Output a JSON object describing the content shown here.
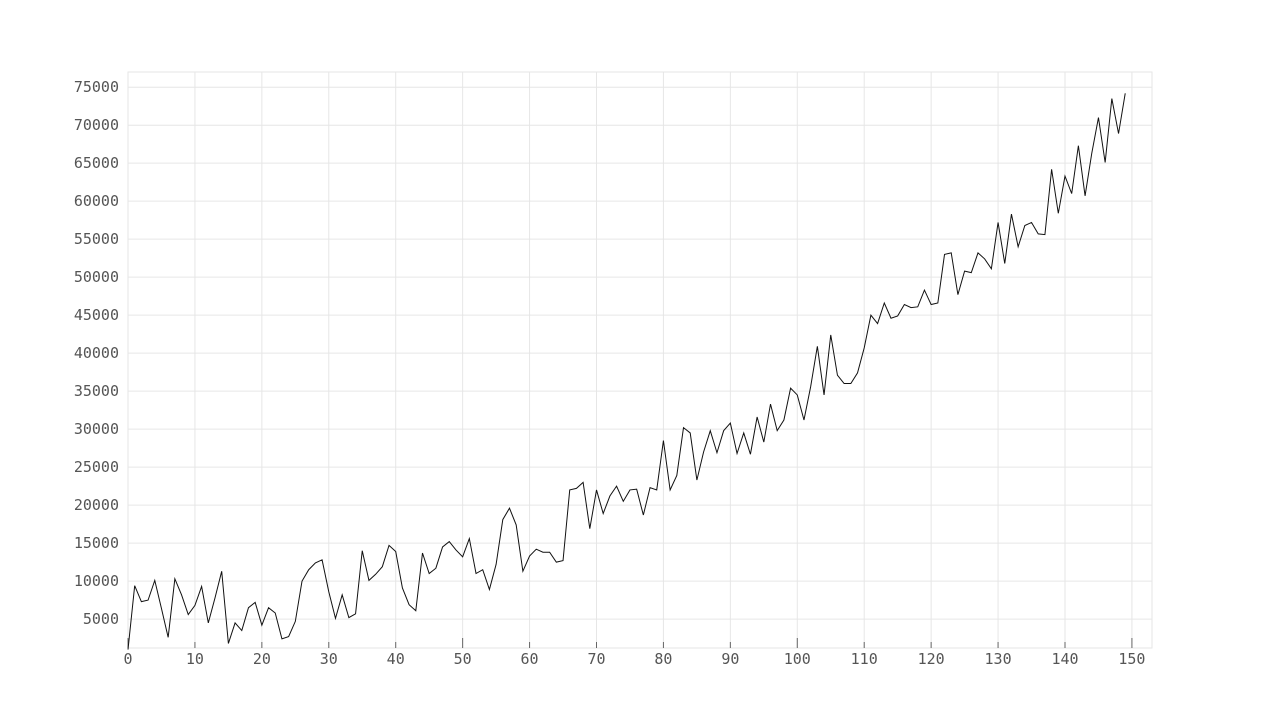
{
  "chart_data": {
    "type": "line",
    "title": "",
    "xlabel": "",
    "ylabel": "",
    "xlim": [
      0,
      153
    ],
    "ylim": [
      1200,
      77000
    ],
    "grid": true,
    "x_ticks": [
      0,
      10,
      20,
      30,
      40,
      50,
      60,
      70,
      80,
      90,
      100,
      110,
      120,
      130,
      140,
      150
    ],
    "y_ticks": [
      5000,
      10000,
      15000,
      20000,
      25000,
      30000,
      35000,
      40000,
      45000,
      50000,
      55000,
      60000,
      65000,
      70000,
      75000
    ],
    "series": [
      {
        "name": "",
        "color": "#111111",
        "x_start": 0,
        "x_step": 1,
        "values": [
          1000,
          9400,
          7300,
          7500,
          10100,
          6400,
          2600,
          10300,
          8200,
          5600,
          6800,
          9300,
          4500,
          7800,
          11300,
          1800,
          4500,
          3500,
          6500,
          7200,
          4200,
          6500,
          5800,
          2400,
          2700,
          4700,
          10000,
          11500,
          12400,
          12800,
          8600,
          5100,
          8200,
          5200,
          5700,
          14000,
          10100,
          10900,
          11900,
          14700,
          13900,
          9100,
          6900,
          6100,
          13700,
          11000,
          11700,
          14500,
          15200,
          14100,
          13200,
          15600,
          11000,
          11500,
          8900,
          12200,
          18100,
          19600,
          17400,
          11300,
          13300,
          14200,
          13800,
          13800,
          12500,
          12700,
          22000,
          22200,
          23000,
          16900,
          22000,
          18900,
          21200,
          22500,
          20500,
          22000,
          22100,
          18700,
          22300,
          22000,
          28500,
          22000,
          23900,
          30200,
          29500,
          23300,
          27000,
          29800,
          26900,
          29800,
          30800,
          26800,
          29500,
          26700,
          31600,
          28300,
          33300,
          29800,
          31200,
          35400,
          34500,
          31200,
          35600,
          40900,
          34500,
          42400,
          37100,
          36000,
          36000,
          37400,
          40700,
          45000,
          43900,
          46600,
          44600,
          44900,
          46400,
          46000,
          46100,
          48300,
          46400,
          46600,
          53000,
          53200,
          47700,
          50800,
          50600,
          53200,
          52400,
          51100,
          57200,
          51800,
          58300,
          54000,
          56800,
          57200,
          55700,
          55600,
          64200,
          58400,
          63300,
          61000,
          67300,
          60700,
          66300,
          71000,
          65100,
          73500,
          68900,
          74200
        ]
      }
    ]
  }
}
